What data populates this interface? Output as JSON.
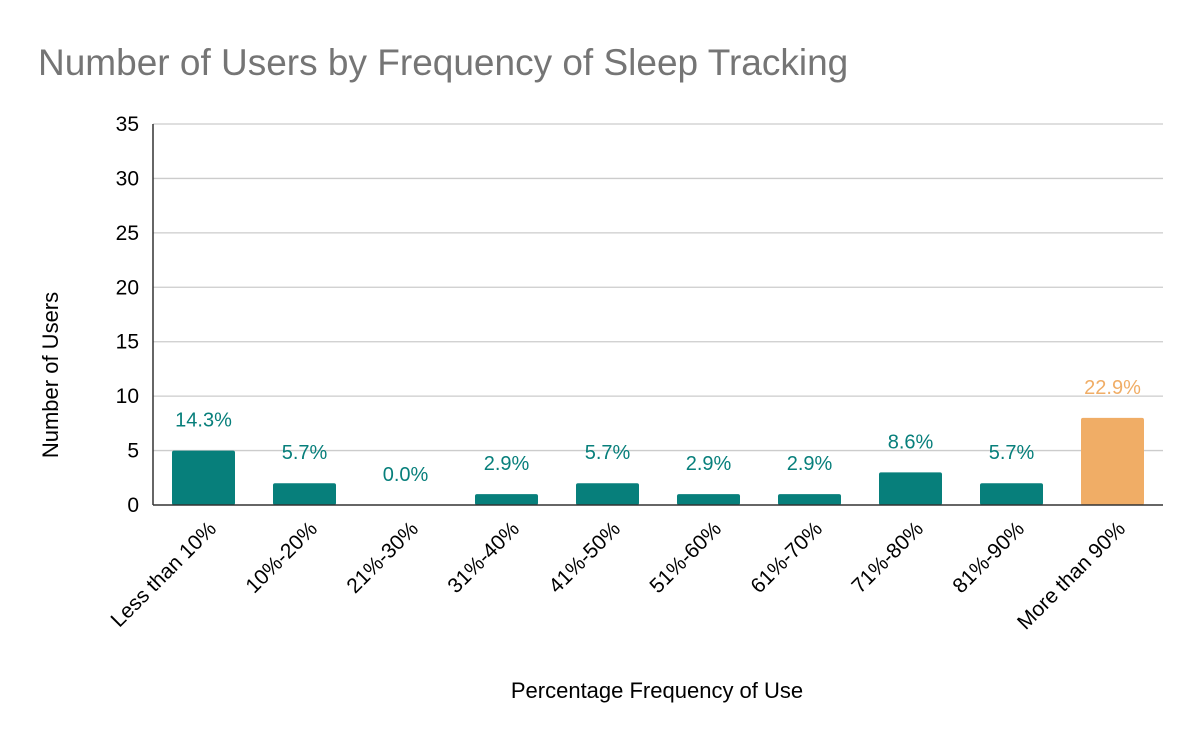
{
  "chart_data": {
    "type": "bar",
    "title": "Number of Users by Frequency of Sleep Tracking",
    "xlabel": "Percentage Frequency of Use",
    "ylabel": "Number of Users",
    "ylim": [
      0,
      35
    ],
    "yticks": [
      0,
      5,
      10,
      15,
      20,
      25,
      30,
      35
    ],
    "grid": true,
    "categories": [
      "Less than 10%",
      "10%-20%",
      "21%-30%",
      "31%-40%",
      "41%-50%",
      "51%-60%",
      "61%-70%",
      "71%-80%",
      "81%-90%",
      "More than 90%"
    ],
    "values": [
      5,
      2,
      0,
      1,
      2,
      1,
      1,
      3,
      2,
      8
    ],
    "data_labels": [
      "14.3%",
      "5.7%",
      "0.0%",
      "2.9%",
      "5.7%",
      "2.9%",
      "2.9%",
      "8.6%",
      "5.7%",
      "22.9%"
    ],
    "colors": {
      "default": "#077f7b",
      "highlight": "#f0ad66",
      "label_default": "#077f7b",
      "label_highlight": "#f0ad66",
      "grid": "#cccccc",
      "axis": "#333333"
    },
    "highlight_index": 9
  }
}
